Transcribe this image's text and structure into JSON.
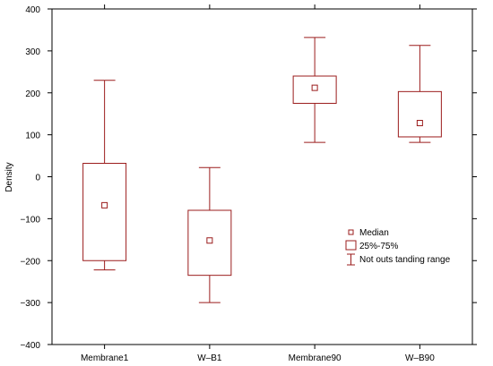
{
  "chart_data": {
    "type": "box",
    "title": "",
    "xlabel": "",
    "ylabel": "Density",
    "ylim": [
      -400,
      400
    ],
    "yticks": [
      -400,
      -300,
      -200,
      -100,
      0,
      100,
      200,
      300,
      400
    ],
    "categories": [
      "Membrane1",
      "W-B1",
      "Membrane90",
      "W-B90"
    ],
    "boxes": [
      {
        "category": "Membrane1",
        "median": -68,
        "q1": -200,
        "q3": 32,
        "whisker_low": -222,
        "whisker_high": 230
      },
      {
        "category": "W-B1",
        "median": -152,
        "q1": -235,
        "q3": -80,
        "whisker_low": -300,
        "whisker_high": 22
      },
      {
        "category": "Membrane90",
        "median": 212,
        "q1": 175,
        "q3": 240,
        "whisker_low": 82,
        "whisker_high": 332
      },
      {
        "category": "W-B90",
        "median": 128,
        "q1": 95,
        "q3": 203,
        "whisker_low": 82,
        "whisker_high": 313
      }
    ],
    "grid": false,
    "legend": {
      "placement": "lower-right",
      "entries": [
        "Median",
        "25%-75%",
        "Not outs tanding range"
      ]
    },
    "colors": {
      "boxes": "#9b1c1c",
      "axes": "#000000"
    }
  }
}
